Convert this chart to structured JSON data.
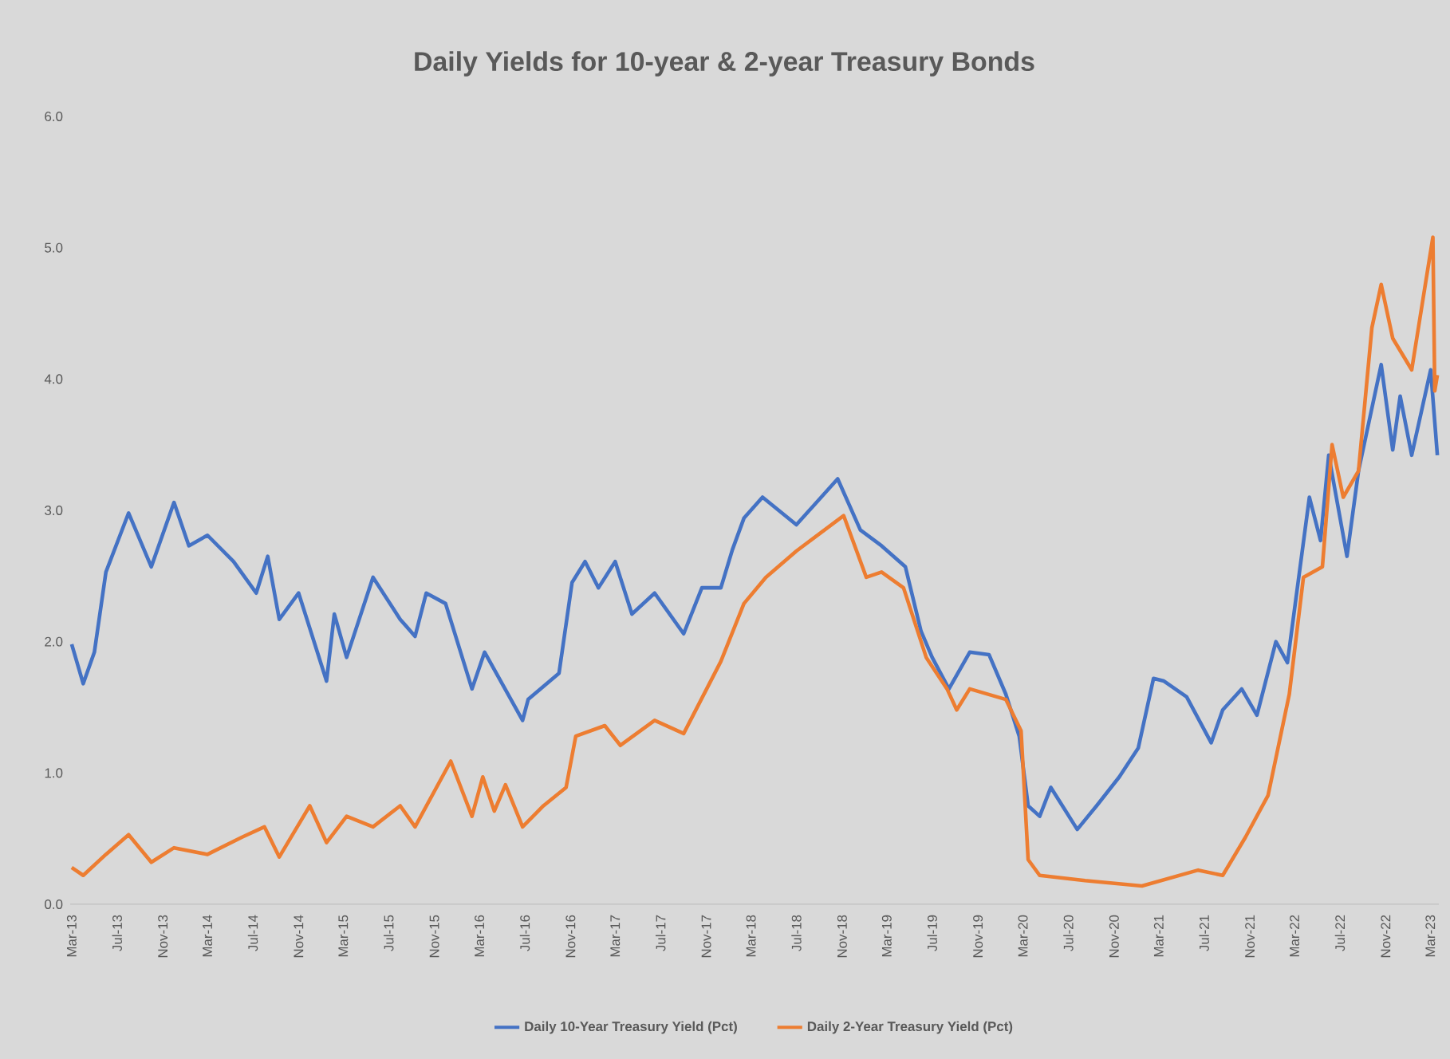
{
  "chart_data": {
    "type": "line",
    "title": "Daily Yields for 10-year & 2-year Treasury Bonds",
    "series": [
      {
        "name": "Daily 10-Year Treasury Yield (Pct)",
        "color": "#4472c4",
        "x": [
          "2013-03-01",
          "2013-04-01",
          "2013-05-01",
          "2013-06-01",
          "2013-08-01",
          "2013-10-01",
          "2013-12-01",
          "2014-01-10",
          "2014-03-01",
          "2014-05-10",
          "2014-07-10",
          "2014-08-10",
          "2014-09-10",
          "2014-11-01",
          "2015-01-15",
          "2015-02-05",
          "2015-03-10",
          "2015-05-20",
          "2015-08-01",
          "2015-09-10",
          "2015-10-10",
          "2015-12-01",
          "2016-02-10",
          "2016-03-15",
          "2016-06-25",
          "2016-07-10",
          "2016-10-01",
          "2016-11-05",
          "2016-12-10",
          "2017-01-15",
          "2017-03-01",
          "2017-04-15",
          "2017-06-15",
          "2017-09-01",
          "2017-10-20",
          "2017-12-10",
          "2018-01-10",
          "2018-02-10",
          "2018-04-01",
          "2018-07-01",
          "2018-10-20",
          "2018-12-20",
          "2019-02-15",
          "2019-04-20",
          "2019-06-01",
          "2019-07-01",
          "2019-08-15",
          "2019-10-10",
          "2019-12-01",
          "2020-01-15",
          "2020-02-20",
          "2020-03-15",
          "2020-04-15",
          "2020-05-15",
          "2020-07-25",
          "2020-09-15",
          "2020-11-15",
          "2021-01-05",
          "2021-02-15",
          "2021-03-15",
          "2021-05-15",
          "2021-07-20",
          "2021-08-20",
          "2021-10-10",
          "2021-11-20",
          "2022-01-10",
          "2022-02-10",
          "2022-04-10",
          "2022-05-10",
          "2022-06-01",
          "2022-07-20",
          "2022-08-20",
          "2022-10-20",
          "2022-11-20",
          "2022-12-10",
          "2023-01-10",
          "2023-03-02",
          "2023-03-20"
        ],
        "values": [
          1.98,
          1.68,
          1.92,
          2.53,
          2.98,
          2.57,
          3.06,
          2.73,
          2.81,
          2.61,
          2.37,
          2.65,
          2.17,
          2.37,
          1.7,
          2.21,
          1.88,
          2.49,
          2.17,
          2.04,
          2.37,
          2.29,
          1.64,
          1.92,
          1.4,
          1.56,
          1.76,
          2.45,
          2.61,
          2.41,
          2.61,
          2.21,
          2.37,
          2.06,
          2.41,
          2.41,
          2.7,
          2.94,
          3.1,
          2.89,
          3.24,
          2.85,
          2.73,
          2.57,
          2.08,
          1.88,
          1.64,
          1.92,
          1.9,
          1.6,
          1.28,
          0.75,
          0.67,
          0.89,
          0.57,
          0.75,
          0.97,
          1.19,
          1.72,
          1.7,
          1.58,
          1.23,
          1.48,
          1.64,
          1.44,
          2.0,
          1.84,
          3.1,
          2.77,
          3.42,
          2.65,
          3.3,
          4.11,
          3.46,
          3.87,
          3.42,
          4.07,
          3.42
        ]
      },
      {
        "name": "Daily 2-Year Treasury Yield (Pct)",
        "color": "#ed7d31",
        "x": [
          "2013-03-01",
          "2013-04-01",
          "2013-06-01",
          "2013-08-01",
          "2013-10-01",
          "2013-12-01",
          "2014-03-01",
          "2014-06-01",
          "2014-08-01",
          "2014-09-10",
          "2014-12-01",
          "2015-01-15",
          "2015-03-10",
          "2015-05-20",
          "2015-08-01",
          "2015-09-10",
          "2015-12-15",
          "2016-02-10",
          "2016-03-10",
          "2016-04-10",
          "2016-05-10",
          "2016-06-25",
          "2016-08-20",
          "2016-10-20",
          "2016-11-15",
          "2017-02-01",
          "2017-03-15",
          "2017-06-15",
          "2017-09-01",
          "2017-12-10",
          "2018-02-10",
          "2018-04-10",
          "2018-07-01",
          "2018-11-05",
          "2019-01-05",
          "2019-02-15",
          "2019-04-15",
          "2019-06-15",
          "2019-08-10",
          "2019-09-05",
          "2019-10-10",
          "2020-01-15",
          "2020-02-25",
          "2020-03-15",
          "2020-04-15",
          "2020-08-15",
          "2021-01-15",
          "2021-06-15",
          "2021-08-20",
          "2021-10-20",
          "2021-12-20",
          "2022-02-15",
          "2022-03-25",
          "2022-05-15",
          "2022-06-10",
          "2022-07-10",
          "2022-08-20",
          "2022-09-25",
          "2022-10-20",
          "2022-11-20",
          "2023-01-10",
          "2023-03-08",
          "2023-03-13",
          "2023-03-20"
        ],
        "values": [
          0.28,
          0.22,
          0.38,
          0.53,
          0.32,
          0.43,
          0.38,
          0.51,
          0.59,
          0.36,
          0.75,
          0.47,
          0.67,
          0.59,
          0.75,
          0.59,
          1.09,
          0.67,
          0.97,
          0.71,
          0.91,
          0.59,
          0.75,
          0.89,
          1.28,
          1.36,
          1.21,
          1.4,
          1.3,
          1.85,
          2.29,
          2.49,
          2.69,
          2.96,
          2.49,
          2.53,
          2.41,
          1.88,
          1.64,
          1.48,
          1.64,
          1.56,
          1.32,
          0.34,
          0.22,
          0.18,
          0.14,
          0.26,
          0.22,
          0.51,
          0.83,
          1.6,
          2.49,
          2.57,
          3.5,
          3.1,
          3.3,
          4.39,
          4.72,
          4.31,
          4.07,
          5.08,
          3.91,
          4.03
        ]
      }
    ],
    "xlim": [
      "2013-02-25",
      "2023-03-24"
    ],
    "xticks": [
      {
        "value": "2013-03",
        "label": "Mar-13"
      },
      {
        "value": "2013-07",
        "label": "Jul-13"
      },
      {
        "value": "2013-11",
        "label": "Nov-13"
      },
      {
        "value": "2014-03",
        "label": "Mar-14"
      },
      {
        "value": "2014-07",
        "label": "Jul-14"
      },
      {
        "value": "2014-11",
        "label": "Nov-14"
      },
      {
        "value": "2015-03",
        "label": "Mar-15"
      },
      {
        "value": "2015-07",
        "label": "Jul-15"
      },
      {
        "value": "2015-11",
        "label": "Nov-15"
      },
      {
        "value": "2016-03",
        "label": "Mar-16"
      },
      {
        "value": "2016-07",
        "label": "Jul-16"
      },
      {
        "value": "2016-11",
        "label": "Nov-16"
      },
      {
        "value": "2017-03",
        "label": "Mar-17"
      },
      {
        "value": "2017-07",
        "label": "Jul-17"
      },
      {
        "value": "2017-11",
        "label": "Nov-17"
      },
      {
        "value": "2018-03",
        "label": "Mar-18"
      },
      {
        "value": "2018-07",
        "label": "Jul-18"
      },
      {
        "value": "2018-11",
        "label": "Nov-18"
      },
      {
        "value": "2019-03",
        "label": "Mar-19"
      },
      {
        "value": "2019-07",
        "label": "Jul-19"
      },
      {
        "value": "2019-11",
        "label": "Nov-19"
      },
      {
        "value": "2020-03",
        "label": "Mar-20"
      },
      {
        "value": "2020-07",
        "label": "Jul-20"
      },
      {
        "value": "2020-11",
        "label": "Nov-20"
      },
      {
        "value": "2021-03",
        "label": "Mar-21"
      },
      {
        "value": "2021-07",
        "label": "Jul-21"
      },
      {
        "value": "2021-11",
        "label": "Nov-21"
      },
      {
        "value": "2022-03",
        "label": "Mar-22"
      },
      {
        "value": "2022-07",
        "label": "Jul-22"
      },
      {
        "value": "2022-11",
        "label": "Nov-22"
      },
      {
        "value": "2023-03",
        "label": "Mar-23"
      }
    ],
    "ylim": [
      0,
      6
    ],
    "yticks": [
      {
        "value": 0,
        "label": "0.0"
      },
      {
        "value": 1,
        "label": "1.0"
      },
      {
        "value": 2,
        "label": "2.0"
      },
      {
        "value": 3,
        "label": "3.0"
      },
      {
        "value": 4,
        "label": "4.0"
      },
      {
        "value": 5,
        "label": "5.0"
      },
      {
        "value": 6,
        "label": "6.0"
      }
    ],
    "legend": "bottom",
    "grid": false,
    "line_style": "solid"
  }
}
